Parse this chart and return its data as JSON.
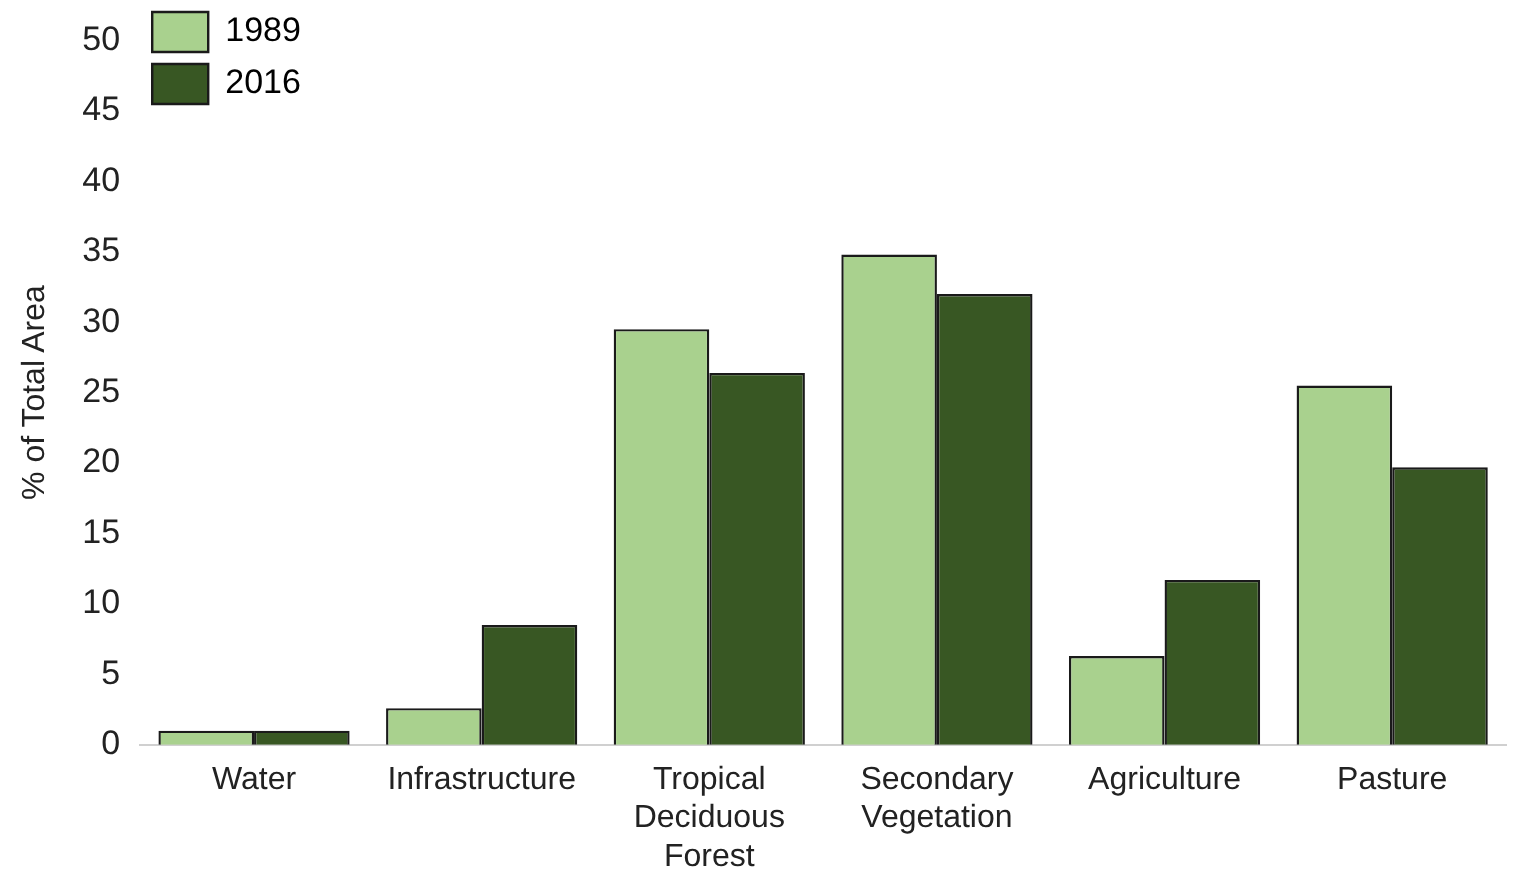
{
  "chart_data": {
    "type": "bar",
    "ylabel": "% of Total Area",
    "categories": [
      "Water",
      "Infrastructure",
      "Tropical Deciduous Forest",
      "Secondary Vegetation",
      "Agriculture",
      "Pasture"
    ],
    "series": [
      {
        "name": "1989",
        "color": "#a9d18e",
        "values": [
          1.0,
          2.6,
          29.5,
          34.8,
          6.3,
          25.5
        ]
      },
      {
        "name": "2016",
        "color": "#385723",
        "values": [
          1.0,
          8.5,
          26.4,
          32.0,
          11.7,
          19.7
        ]
      }
    ],
    "ylim": [
      0,
      50
    ],
    "yticks": [
      0,
      5,
      10,
      15,
      20,
      25,
      30,
      35,
      40,
      45,
      50
    ],
    "grid": false,
    "legend": "top left"
  }
}
